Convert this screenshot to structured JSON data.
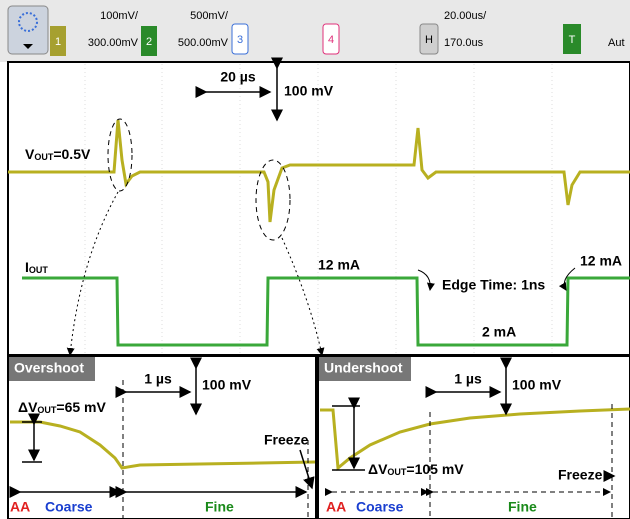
{
  "toolbar": {
    "ch1": {
      "label": "1",
      "scale": "100mV/",
      "offset": "300.00mV"
    },
    "ch2": {
      "label": "2",
      "scale": "500mV/",
      "offset": "500.00mV"
    },
    "ch3": {
      "label": "3"
    },
    "ch4": {
      "label": "4"
    },
    "horizontal": {
      "label": "H",
      "scale": "20.00us/",
      "delay": "170.0us"
    },
    "trigger": {
      "label": "T",
      "mode": "Aut"
    }
  },
  "main": {
    "time_div": "20 µs",
    "volt_div": "100 mV",
    "vout": {
      "main": "V",
      "sub": "OUT",
      "rest": "=0.5V"
    },
    "iout": {
      "main": "I",
      "sub": "OUT"
    },
    "high_current_1": "12 mA",
    "edge_time": "Edge Time: 1ns",
    "high_current_2": "12 mA",
    "low_current": "2 mA"
  },
  "overshoot": {
    "title": "Overshoot",
    "time_div": "1 µs",
    "volt_div": "100 mV",
    "delta": {
      "main": "ΔV",
      "sub": "OUT",
      "rest": "=65 mV"
    },
    "freeze": "Freeze",
    "aa": "AA",
    "coarse": "Coarse",
    "fine": "Fine"
  },
  "undershoot": {
    "title": "Undershoot",
    "time_div": "1 µs",
    "volt_div": "100 mV",
    "delta": {
      "main": "ΔV",
      "sub": "OUT",
      "rest": "=105 mV"
    },
    "freeze": "Freeze",
    "aa": "AA",
    "coarse": "Coarse",
    "fine": "Fine"
  }
}
